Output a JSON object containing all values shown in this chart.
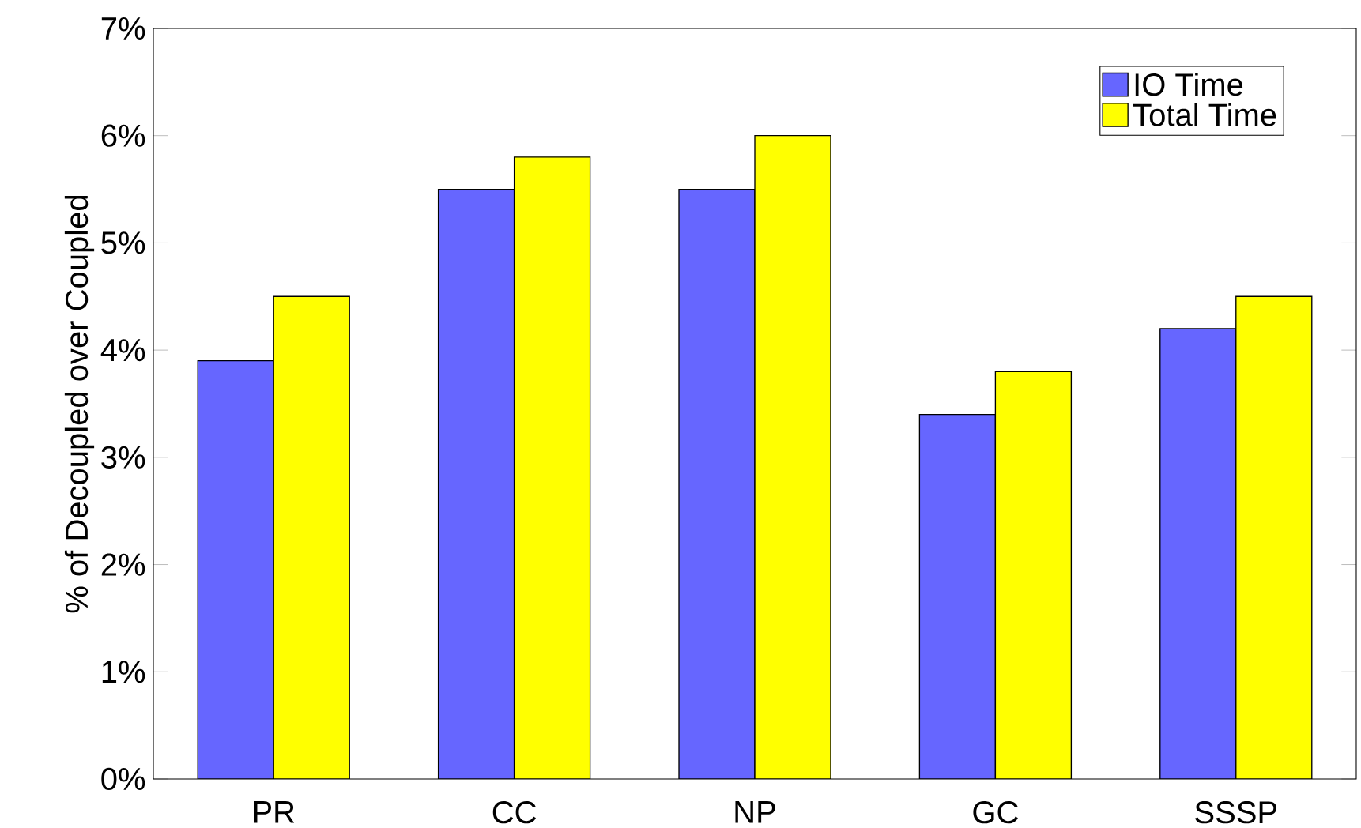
{
  "chart_data": {
    "type": "bar",
    "ylabel": "% of Decoupled over Coupled",
    "categories": [
      "PR",
      "CC",
      "NP",
      "GC",
      "SSSP"
    ],
    "series": [
      {
        "name": "IO Time",
        "color": "#6666ff",
        "values": [
          3.9,
          5.5,
          5.5,
          3.4,
          4.2
        ]
      },
      {
        "name": "Total Time",
        "color": "#ffff00",
        "values": [
          4.5,
          5.8,
          6.0,
          3.8,
          4.5
        ]
      }
    ],
    "ylim": [
      0,
      7
    ],
    "yticks": [
      {
        "value": 0,
        "label": "0%"
      },
      {
        "value": 1,
        "label": "1%"
      },
      {
        "value": 2,
        "label": "2%"
      },
      {
        "value": 3,
        "label": "3%"
      },
      {
        "value": 4,
        "label": "4%"
      },
      {
        "value": 5,
        "label": "5%"
      },
      {
        "value": 6,
        "label": "6%"
      },
      {
        "value": 7,
        "label": "7%"
      }
    ],
    "legend": "top right",
    "grid": false
  }
}
